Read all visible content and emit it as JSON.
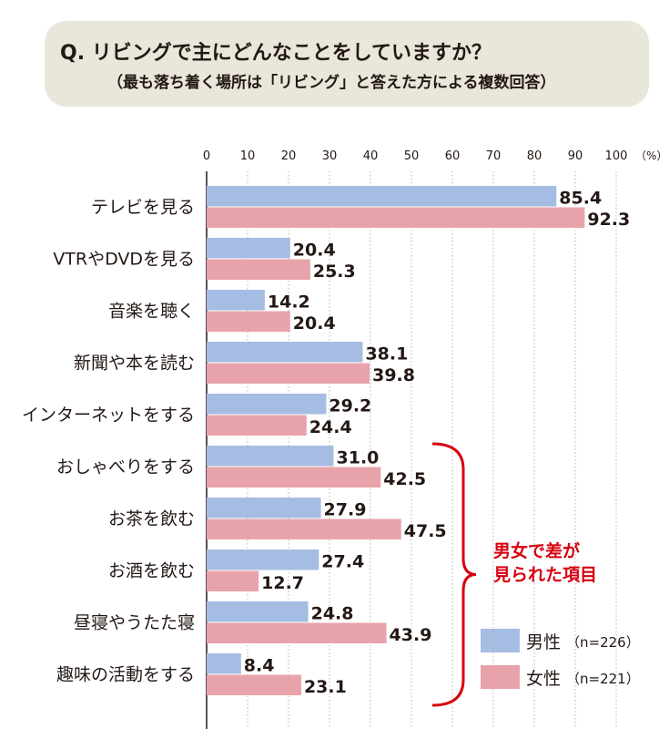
{
  "header": {
    "question": "Q. リビングで主にどんなことをしていますか？",
    "subtitle": "（最も落ち着く場所は「リビング」と答えた方による複数回答）"
  },
  "colors": {
    "male": "#a6bde3",
    "female": "#e8a3aa",
    "grid": "#b5b5b5",
    "bracket": "#d7000f",
    "title_bg": "#e9e6da"
  },
  "chart_data": {
    "type": "bar",
    "orientation": "horizontal",
    "categories": [
      "テレビを見る",
      "VTRやDVDを見る",
      "音楽を聴く",
      "新聞や本を読む",
      "インターネットをする",
      "おしゃべりをする",
      "お茶を飲む",
      "お酒を飲む",
      "昼寝やうたた寝",
      "趣味の活動をする"
    ],
    "series": [
      {
        "name": "男性",
        "n_label": "（n=226）",
        "values": [
          85.4,
          20.4,
          14.2,
          38.1,
          29.2,
          31.0,
          27.9,
          27.4,
          24.8,
          8.4
        ]
      },
      {
        "name": "女性",
        "n_label": "（n=221）",
        "values": [
          92.3,
          25.3,
          20.4,
          39.8,
          24.4,
          42.5,
          47.5,
          12.7,
          43.9,
          23.1
        ]
      }
    ],
    "xlim": [
      0,
      100
    ],
    "xticks": [
      0,
      10,
      20,
      30,
      40,
      50,
      60,
      70,
      80,
      90,
      100
    ],
    "unit_label": "（%）",
    "grid": true,
    "legend_position": "bottom-right",
    "annotation": {
      "lines": [
        "男女で差が",
        "見られた項目"
      ],
      "from_category": 5,
      "to_category": 9
    }
  }
}
